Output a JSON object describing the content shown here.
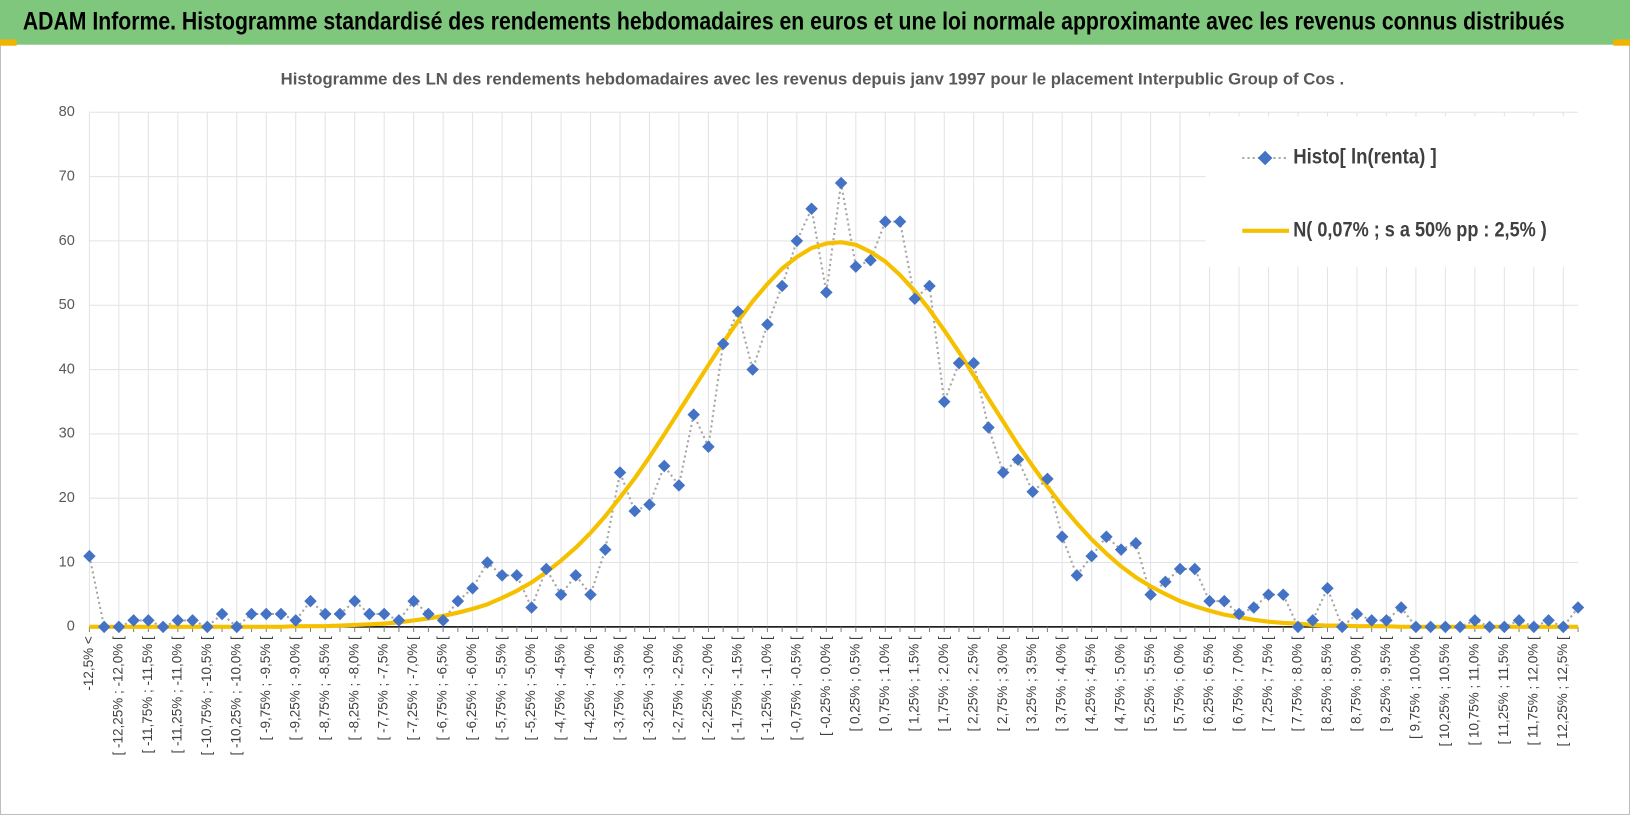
{
  "chart_data": {
    "type": "line",
    "header": "ADAM Informe. Histogramme standardisé des rendements hebdomadaires en euros et une loi normale approximante avec les revenus connus distribués",
    "title": "Histogramme  des LN des rendements hebdomadaires avec les revenus depuis janv 1997 pour le placement Interpublic Group of Cos .",
    "categories": [
      "-12,5% <",
      null,
      "[ -12,25% ; -12,0% [",
      null,
      "[ -11,75% ; -11,5% [",
      null,
      "[ -11,25% ; -11,0% [",
      null,
      "[ -10,75% ; -10,5% [",
      null,
      "[ -10,25% ; -10,0% [",
      null,
      "[ -9,75% ; -9,5% [",
      null,
      "[ -9,25% ; -9,0% [",
      null,
      "[ -8,75% ; -8,5% [",
      null,
      "[ -8,25% ; -8,0% [",
      null,
      "[ -7,75% ; -7,5% [",
      null,
      "[ -7,25% ; -7,0% [",
      null,
      "[ -6,75% ; -6,5% [",
      null,
      "[ -6,25% ; -6,0% [",
      null,
      "[ -5,75% ; -5,5% [",
      null,
      "[ -5,25% ; -5,0% [",
      null,
      "[ -4,75% ; -4,5% [",
      null,
      "[ -4,25% ; -4,0% [",
      null,
      "[ -3,75% ; -3,5% [",
      null,
      "[ -3,25% ; -3,0% [",
      null,
      "[ -2,75% ; -2,5% [",
      null,
      "[ -2,25% ; -2,0% [",
      null,
      "[ -1,75% ; -1,5% [",
      null,
      "[ -1,25% ; -1,0% [",
      null,
      "[ -0,75% ; -0,5% [",
      null,
      "[ -0,25% ; 0,0% [",
      null,
      "[ 0,25% ; 0,5% [",
      null,
      "[ 0,75% ; 1,0% [",
      null,
      "[ 1,25% ; 1,5% [",
      null,
      "[ 1,75% ; 2,0% [",
      null,
      "[ 2,25% ; 2,5% [",
      null,
      "[ 2,75% ; 3,0% [",
      null,
      "[ 3,25% ; 3,5% [",
      null,
      "[ 3,75% ; 4,0% [",
      null,
      "[ 4,25% ; 4,5% [",
      null,
      "[ 4,75% ; 5,0% [",
      null,
      "[ 5,25% ; 5,5% [",
      null,
      "[ 5,75% ; 6,0% [",
      null,
      "[ 6,25% ; 6,5% [",
      null,
      "[ 6,75% ; 7,0% [",
      null,
      "[ 7,25% ; 7,5% [",
      null,
      "[ 7,75% ; 8,0% [",
      null,
      "[ 8,25% ; 8,5% [",
      null,
      "[ 8,75% ; 9,0% [",
      null,
      "[ 9,25% ; 9,5% [",
      null,
      "[ 9,75% ; 10,0% [",
      null,
      "[ 10,25% ; 10,5% [",
      null,
      "[ 10,75% ; 11,0% [",
      null,
      "[ 11,25% ; 11,5% [",
      null,
      "[ 11,75% ; 12,0% [",
      null,
      "[ 12,25% ; 12,5% [",
      null
    ],
    "series": [
      {
        "name": "Histo[ ln(renta) ]",
        "color": "#4472c4",
        "line_color": "#a6a6a6",
        "values": [
          11,
          0,
          0,
          1,
          1,
          0,
          1,
          1,
          0,
          2,
          0,
          2,
          2,
          2,
          1,
          4,
          2,
          2,
          4,
          2,
          2,
          1,
          4,
          2,
          1,
          4,
          6,
          10,
          8,
          8,
          3,
          9,
          5,
          8,
          5,
          12,
          24,
          18,
          19,
          25,
          22,
          33,
          28,
          44,
          49,
          40,
          47,
          53,
          60,
          65,
          52,
          69,
          56,
          57,
          63,
          63,
          51,
          53,
          35,
          41,
          41,
          31,
          24,
          26,
          21,
          23,
          14,
          8,
          11,
          14,
          12,
          13,
          5,
          7,
          9,
          9,
          4,
          4,
          2,
          3,
          5,
          5,
          0,
          1,
          6,
          0,
          2,
          1,
          1,
          3,
          0,
          0,
          0,
          0,
          1,
          0,
          0,
          1,
          0,
          1,
          0,
          3
        ]
      },
      {
        "name": "N( 0,07% ; s a 50% pp : 2,5% )",
        "color": "#f5c000",
        "values": [
          0,
          0,
          0,
          0,
          0,
          0,
          0,
          0,
          0,
          0,
          0,
          0,
          0,
          0,
          0.1,
          0.1,
          0.1,
          0.2,
          0.3,
          0.4,
          0.5,
          0.7,
          1.0,
          1.3,
          1.7,
          2.2,
          2.8,
          3.5,
          4.5,
          5.6,
          6.9,
          8.5,
          10.3,
          12.3,
          14.6,
          17.2,
          20.1,
          23.1,
          26.4,
          29.9,
          33.5,
          37.1,
          40.7,
          44.2,
          47.5,
          50.6,
          53.3,
          55.7,
          57.5,
          58.9,
          59.6,
          59.8,
          59.4,
          58.3,
          56.8,
          54.7,
          52.2,
          49.3,
          46.1,
          42.7,
          39.1,
          35.5,
          31.9,
          28.3,
          25.0,
          21.8,
          18.8,
          16.1,
          13.6,
          11.4,
          9.4,
          7.7,
          6.3,
          5.1,
          4.0,
          3.2,
          2.5,
          1.9,
          1.5,
          1.1,
          0.8,
          0.6,
          0.5,
          0.3,
          0.2,
          0.2,
          0.1,
          0.1,
          0.1,
          0,
          0,
          0,
          0,
          0,
          0,
          0,
          0,
          0,
          0,
          0,
          0,
          0
        ]
      }
    ],
    "ylim": [
      0,
      80
    ],
    "yticks": [
      0,
      10,
      20,
      30,
      40,
      50,
      60,
      70,
      80
    ],
    "grid": true,
    "legend": "top-right"
  }
}
